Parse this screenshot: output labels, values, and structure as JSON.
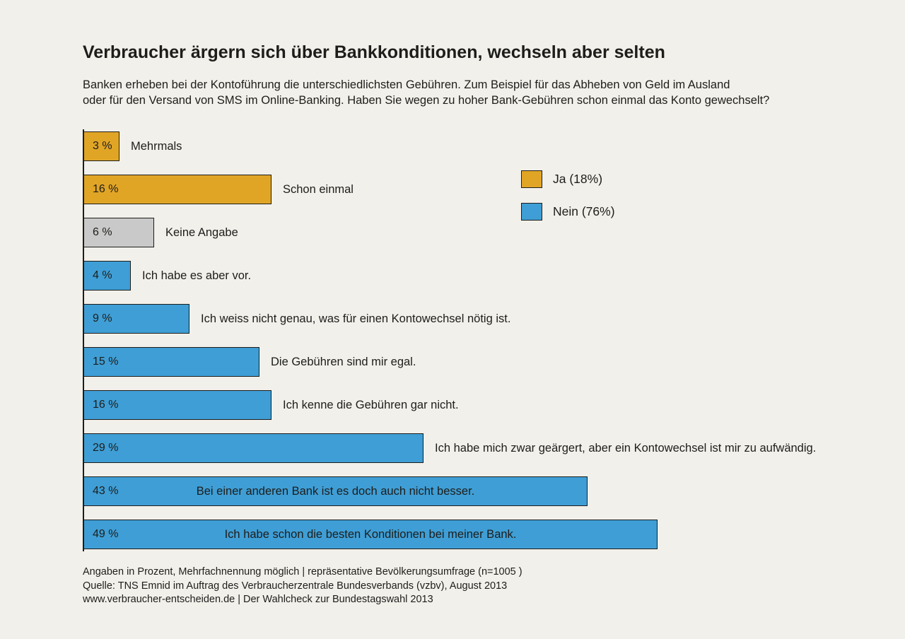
{
  "page": {
    "title": "Verbraucher ärgern sich über Bankkonditionen, wechseln aber selten",
    "subtitle_line1": "Banken erheben bei der Kontoführung die unterschiedlichsten Gebühren. Zum Beispiel für das Abheben von Geld im Ausland",
    "subtitle_line2": "oder für den Versand von SMS im Online-Banking. Haben Sie wegen zu hoher Bank-Gebühren schon einmal das Konto gewechselt?"
  },
  "colors": {
    "background": "#f2f0ea",
    "orange": "#e1a526",
    "blue": "#3f9ed5",
    "gray": "#c9c9c9",
    "border": "#1d1d1b",
    "text": "#1d1d1b"
  },
  "chart_data": {
    "type": "bar",
    "orientation": "horizontal",
    "unit": "percent",
    "xlim": [
      0,
      50
    ],
    "title": "Verbraucher ärgern sich über Bankkonditionen, wechseln aber selten",
    "bars": [
      {
        "value": 3,
        "value_label": "3 %",
        "label": "Mehrmals",
        "color": "orange",
        "label_position": "outside"
      },
      {
        "value": 16,
        "value_label": "16 %",
        "label": "Schon einmal",
        "color": "orange",
        "label_position": "outside"
      },
      {
        "value": 6,
        "value_label": "6 %",
        "label": "Keine Angabe",
        "color": "gray",
        "label_position": "outside"
      },
      {
        "value": 4,
        "value_label": "4 %",
        "label": "Ich habe es aber vor.",
        "color": "blue",
        "label_position": "outside"
      },
      {
        "value": 9,
        "value_label": "9 %",
        "label": "Ich weiss nicht genau, was für einen Kontowechsel nötig ist.",
        "color": "blue",
        "label_position": "outside"
      },
      {
        "value": 15,
        "value_label": "15 %",
        "label": "Die Gebühren sind mir egal.",
        "color": "blue",
        "label_position": "outside"
      },
      {
        "value": 16,
        "value_label": "16 %",
        "label": "Ich kenne die Gebühren gar nicht.",
        "color": "blue",
        "label_position": "outside"
      },
      {
        "value": 29,
        "value_label": "29 %",
        "label": "Ich habe mich zwar geärgert, aber ein Kontowechsel ist mir zu aufwändig.",
        "color": "blue",
        "label_position": "outside"
      },
      {
        "value": 43,
        "value_label": "43 %",
        "label": "Bei einer anderen Bank ist es doch auch nicht besser.",
        "color": "blue",
        "label_position": "inside"
      },
      {
        "value": 49,
        "value_label": "49 %",
        "label": "Ich habe schon die besten Konditionen bei meiner Bank.",
        "color": "blue",
        "label_position": "inside"
      }
    ],
    "legend": [
      {
        "label": "Ja (18%)",
        "color": "orange"
      },
      {
        "label": "Nein (76%)",
        "color": "blue"
      }
    ],
    "legend_position": "top-right",
    "grid": false
  },
  "footer": {
    "line1": "Angaben in Prozent, Mehrfachnennung möglich | repräsentative Bevölkerungsumfrage (n=1005 )",
    "line2": "Quelle: TNS Emnid im Auftrag des Verbraucherzentrale Bundesverbands (vzbv), August 2013",
    "line3": "www.verbraucher-entscheiden.de | Der Wahlcheck zur Bundestagswahl 2013"
  }
}
